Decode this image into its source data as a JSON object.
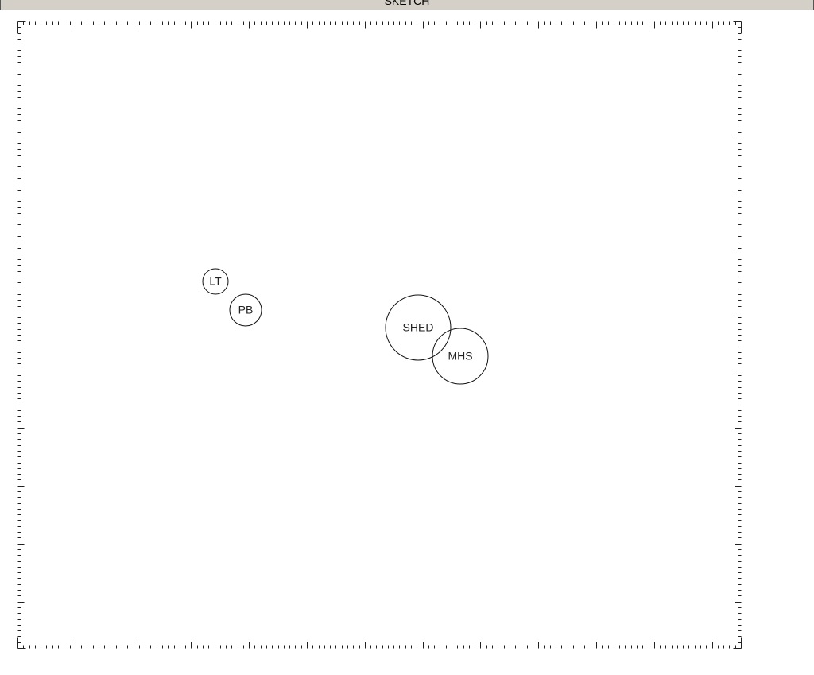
{
  "header": {
    "title": "SKETCH"
  },
  "nodes": [
    {
      "label": "LT"
    },
    {
      "label": "PB"
    },
    {
      "label": "SHED"
    },
    {
      "label": "MHS"
    }
  ]
}
